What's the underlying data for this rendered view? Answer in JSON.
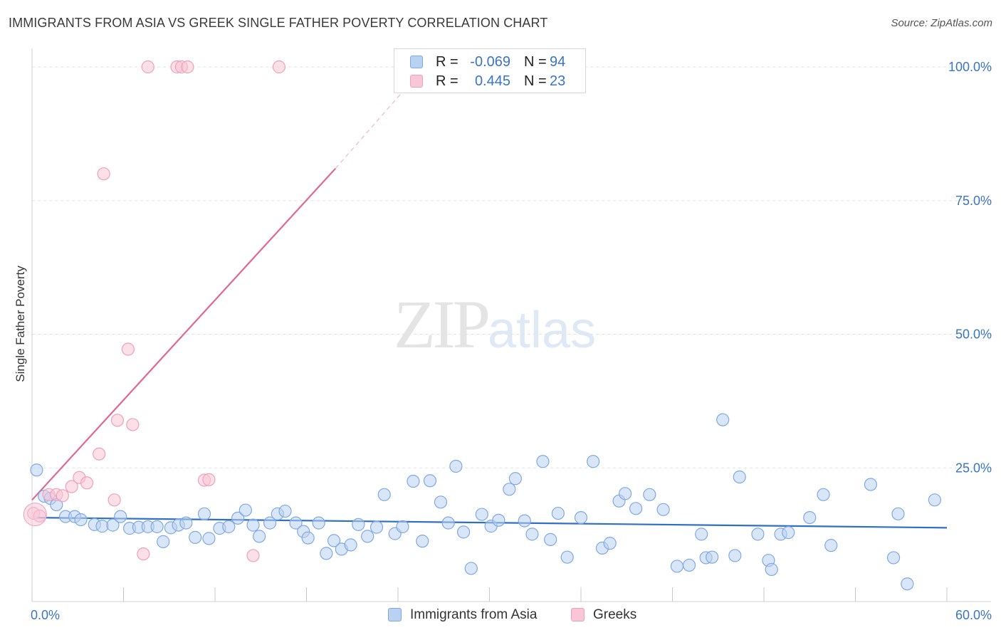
{
  "chart_data": {
    "type": "scatter",
    "title": "IMMIGRANTS FROM ASIA VS GREEK SINGLE FATHER POVERTY CORRELATION CHART",
    "source": "Source: ZipAtlas.com",
    "xlabel": "",
    "ylabel": "Single Father Poverty",
    "xlim": [
      0,
      60
    ],
    "ylim": [
      0,
      100
    ],
    "x_tick_labels": [
      "0.0%",
      "60.0%"
    ],
    "y_tick_labels": [
      "25.0%",
      "50.0%",
      "75.0%",
      "100.0%"
    ],
    "y_ticks": [
      25,
      50,
      75,
      100
    ],
    "grid": true,
    "legend_position": "top-center",
    "series": [
      {
        "name": "Immigrants from Asia",
        "color": "#7fa9e3",
        "fill": "#b9d2f1",
        "trend_color": "#2f6fc6",
        "R": "-0.069",
        "N": "94",
        "trend": {
          "x0": 0.3,
          "y0": 15.7,
          "x1": 60,
          "y1": 13.8
        },
        "points": [
          [
            0.3,
            24.6
          ],
          [
            0.8,
            19.7
          ],
          [
            1.2,
            19.3
          ],
          [
            1.6,
            18.1
          ],
          [
            2.2,
            15.9
          ],
          [
            2.8,
            15.9
          ],
          [
            3.2,
            15.3
          ],
          [
            4.1,
            14.4
          ],
          [
            4.6,
            14.1
          ],
          [
            5.3,
            14.3
          ],
          [
            5.8,
            15.9
          ],
          [
            6.4,
            13.7
          ],
          [
            7.0,
            13.9
          ],
          [
            7.6,
            14.0
          ],
          [
            8.2,
            14.0
          ],
          [
            8.6,
            11.2
          ],
          [
            9.1,
            13.8
          ],
          [
            9.6,
            14.3
          ],
          [
            10.1,
            14.7
          ],
          [
            10.7,
            12.0
          ],
          [
            11.3,
            16.4
          ],
          [
            11.6,
            11.8
          ],
          [
            12.3,
            13.7
          ],
          [
            12.9,
            14.0
          ],
          [
            13.5,
            15.6
          ],
          [
            14.0,
            17.1
          ],
          [
            14.5,
            14.3
          ],
          [
            14.9,
            12.2
          ],
          [
            15.6,
            14.7
          ],
          [
            16.1,
            16.4
          ],
          [
            16.6,
            16.9
          ],
          [
            17.3,
            14.7
          ],
          [
            17.8,
            13.1
          ],
          [
            18.1,
            11.9
          ],
          [
            18.8,
            14.7
          ],
          [
            19.3,
            9.0
          ],
          [
            19.8,
            11.4
          ],
          [
            20.3,
            9.8
          ],
          [
            20.9,
            10.6
          ],
          [
            21.4,
            14.4
          ],
          [
            22.0,
            12.2
          ],
          [
            22.6,
            13.9
          ],
          [
            23.1,
            20.0
          ],
          [
            23.8,
            12.7
          ],
          [
            24.3,
            14.0
          ],
          [
            25.0,
            22.5
          ],
          [
            25.6,
            11.3
          ],
          [
            26.1,
            22.6
          ],
          [
            26.8,
            18.6
          ],
          [
            27.3,
            14.7
          ],
          [
            27.8,
            25.3
          ],
          [
            28.3,
            13.0
          ],
          [
            28.8,
            6.2
          ],
          [
            29.5,
            16.3
          ],
          [
            30.1,
            14.1
          ],
          [
            30.6,
            15.2
          ],
          [
            31.3,
            21.0
          ],
          [
            31.7,
            23.0
          ],
          [
            32.3,
            15.1
          ],
          [
            32.8,
            12.6
          ],
          [
            33.5,
            26.2
          ],
          [
            34.0,
            11.6
          ],
          [
            34.5,
            16.5
          ],
          [
            35.1,
            8.3
          ],
          [
            36.0,
            15.7
          ],
          [
            36.8,
            26.2
          ],
          [
            37.4,
            10.0
          ],
          [
            37.9,
            10.9
          ],
          [
            38.5,
            18.8
          ],
          [
            38.9,
            20.2
          ],
          [
            39.6,
            17.4
          ],
          [
            40.5,
            20.0
          ],
          [
            41.4,
            17.2
          ],
          [
            42.3,
            6.6
          ],
          [
            43.1,
            6.8
          ],
          [
            43.9,
            12.6
          ],
          [
            44.2,
            8.2
          ],
          [
            44.6,
            8.3
          ],
          [
            45.3,
            34.0
          ],
          [
            46.1,
            8.6
          ],
          [
            46.4,
            23.3
          ],
          [
            47.6,
            12.6
          ],
          [
            48.3,
            7.7
          ],
          [
            48.5,
            6.0
          ],
          [
            49.1,
            12.6
          ],
          [
            49.6,
            12.9
          ],
          [
            51.0,
            15.7
          ],
          [
            51.9,
            20.0
          ],
          [
            52.4,
            10.5
          ],
          [
            55.0,
            21.9
          ],
          [
            56.5,
            8.2
          ],
          [
            56.8,
            16.4
          ],
          [
            57.4,
            3.3
          ],
          [
            59.2,
            19.0
          ]
        ]
      },
      {
        "name": "Greeks",
        "color": "#f0a0ba",
        "fill": "#f8c6d6",
        "trend_color": "#e06890",
        "R": "0.445",
        "N": "23",
        "trend": {
          "x0": 0.0,
          "y0": 19.0,
          "x1": 19.9,
          "y1": 81.0
        },
        "trend_dash": {
          "x0": 19.9,
          "y0": 81.0,
          "x1": 24.5,
          "y1": 96.0
        },
        "points": [
          [
            0.1,
            16.5
          ],
          [
            0.5,
            16.0
          ],
          [
            1.1,
            20.0
          ],
          [
            1.6,
            20.0
          ],
          [
            2.0,
            19.8
          ],
          [
            2.6,
            21.5
          ],
          [
            3.1,
            23.2
          ],
          [
            3.6,
            22.2
          ],
          [
            4.4,
            27.6
          ],
          [
            4.7,
            80.0
          ],
          [
            5.4,
            19.0
          ],
          [
            5.6,
            33.9
          ],
          [
            6.3,
            47.2
          ],
          [
            6.6,
            33.1
          ],
          [
            7.3,
            8.9
          ],
          [
            7.6,
            100.0
          ],
          [
            9.5,
            100.0
          ],
          [
            9.8,
            100.0
          ],
          [
            10.2,
            100.0
          ],
          [
            11.3,
            22.7
          ],
          [
            11.6,
            22.8
          ],
          [
            14.5,
            8.6
          ],
          [
            16.2,
            100.0
          ]
        ]
      }
    ]
  },
  "legend": {
    "r_label": "R =",
    "n_label": "N ="
  },
  "watermark": {
    "zip": "ZIP",
    "atlas": "atlas"
  }
}
